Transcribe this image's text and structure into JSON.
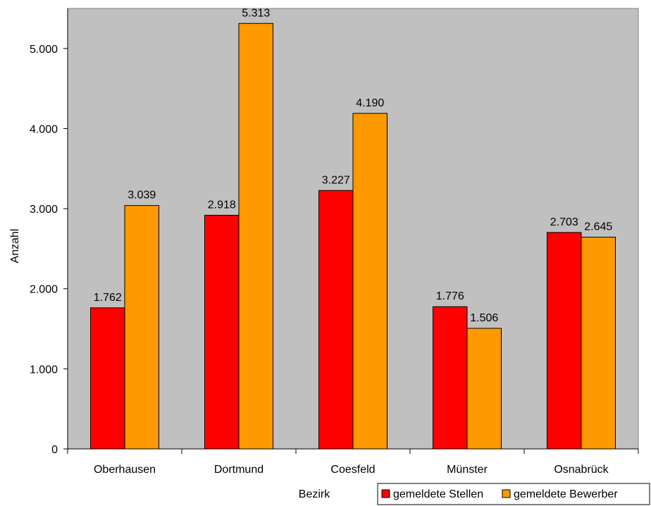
{
  "chart_data": {
    "type": "bar",
    "categories": [
      "Oberhausen",
      "Dortmund",
      "Coesfeld",
      "Münster",
      "Osnabrück"
    ],
    "series": [
      {
        "name": "gemeldete Stellen",
        "values": [
          1762,
          2918,
          3227,
          1776,
          2703
        ],
        "labels": [
          "1.762",
          "2.918",
          "3.227",
          "1.776",
          "2.703"
        ]
      },
      {
        "name": "gemeldete Bewerber",
        "values": [
          3039,
          5313,
          4190,
          1506,
          2645
        ],
        "labels": [
          "3.039",
          "5.313",
          "4.190",
          "1.506",
          "2.645"
        ]
      }
    ],
    "xlabel": "Bezirk",
    "ylabel": "Anzahl",
    "ylim": [
      0,
      5500
    ],
    "yticks": [
      0,
      1000,
      2000,
      3000,
      4000,
      5000
    ],
    "ytick_labels": [
      "0",
      "1.000",
      "2.000",
      "3.000",
      "4.000",
      "5.000"
    ],
    "legend_position": "bottom-right",
    "grid": false
  },
  "colors": {
    "plot_background": "#c0c0c0",
    "series": [
      "#ff0000",
      "#ff9900"
    ]
  }
}
